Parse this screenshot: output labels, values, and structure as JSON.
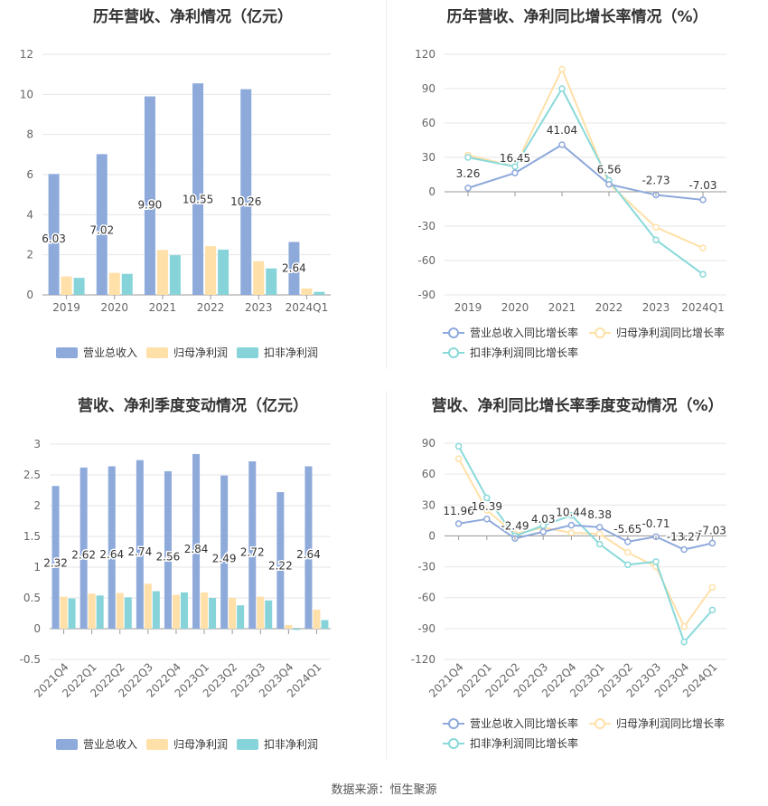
{
  "source": "数据来源：恒生聚源",
  "colors": {
    "revenue": "#8eaadb",
    "netprofit": "#ffe0a8",
    "deducted": "#86d4d9",
    "rev_growth": "#8ea9db",
    "np_growth": "#ffe0a8",
    "ded_growth": "#89d9da",
    "grid": "#e6e6e6",
    "axis_text": "#666666",
    "label_text": "#333333"
  },
  "chart_data": [
    {
      "type": "bar",
      "title": "历年营收、净利情况（亿元）",
      "categories": [
        "2019",
        "2020",
        "2021",
        "2022",
        "2023",
        "2024Q1"
      ],
      "ylim": [
        0,
        12
      ],
      "yticks": [
        "0",
        "2",
        "4",
        "6",
        "8",
        "10",
        "12"
      ],
      "series": [
        {
          "name": "营业总收入",
          "color": "#8eaadb",
          "values": [
            6.03,
            7.02,
            9.9,
            10.55,
            10.26,
            2.64
          ],
          "labels": [
            "6.03",
            "7.02",
            "9.90",
            "10.55",
            "10.26",
            "2.64"
          ]
        },
        {
          "name": "归母净利润",
          "color": "#ffe0a8",
          "values": [
            0.92,
            1.1,
            2.24,
            2.43,
            1.68,
            0.32
          ]
        },
        {
          "name": "扣非净利润",
          "color": "#86d4d9",
          "values": [
            0.85,
            1.05,
            1.98,
            2.26,
            1.32,
            0.15
          ]
        }
      ],
      "legend": "bottom"
    },
    {
      "type": "line",
      "title": "历年营收、净利同比增长率情况（%）",
      "categories": [
        "2019",
        "2020",
        "2021",
        "2022",
        "2023",
        "2024Q1"
      ],
      "ylim": [
        -90,
        120
      ],
      "yticks": [
        "-90",
        "-60",
        "-30",
        "0",
        "30",
        "60",
        "90",
        "120"
      ],
      "series": [
        {
          "name": "营业总收入同比增长率",
          "color": "#8ea9db",
          "values": [
            3.26,
            16.45,
            41.04,
            6.56,
            -2.73,
            -7.03
          ],
          "labels": [
            "3.26",
            "16.45",
            "41.04",
            "6.56",
            "-2.73",
            "-7.03"
          ]
        },
        {
          "name": "归母净利润同比增长率",
          "color": "#ffe0a8",
          "values": [
            32,
            22,
            107,
            7,
            -31,
            -49
          ]
        },
        {
          "name": "扣非净利润同比增长率",
          "color": "#89d9da",
          "values": [
            30,
            22,
            90,
            10,
            -42,
            -72
          ]
        }
      ],
      "legend": "bottom"
    },
    {
      "type": "bar",
      "title": "营收、净利季度变动情况（亿元）",
      "categories": [
        "2021Q4",
        "2022Q1",
        "2022Q2",
        "2022Q3",
        "2022Q4",
        "2023Q1",
        "2023Q2",
        "2023Q3",
        "2023Q4",
        "2024Q1"
      ],
      "ylim": [
        -0.5,
        3
      ],
      "yticks": [
        "-0.5",
        "0",
        "0.5",
        "1",
        "1.5",
        "2",
        "2.5",
        "3"
      ],
      "series": [
        {
          "name": "营业总收入",
          "color": "#8eaadb",
          "values": [
            2.32,
            2.62,
            2.64,
            2.74,
            2.56,
            2.84,
            2.49,
            2.72,
            2.22,
            2.64
          ],
          "labels": [
            "2.32",
            "2.62",
            "2.64",
            "2.74",
            "2.56",
            "2.84",
            "2.49",
            "2.72",
            "2.22",
            "2.64"
          ]
        },
        {
          "name": "归母净利润",
          "color": "#ffe0a8",
          "values": [
            0.52,
            0.57,
            0.58,
            0.73,
            0.55,
            0.59,
            0.5,
            0.52,
            0.06,
            0.31
          ]
        },
        {
          "name": "扣非净利润",
          "color": "#86d4d9",
          "values": [
            0.49,
            0.54,
            0.51,
            0.61,
            0.59,
            0.5,
            0.38,
            0.46,
            -0.02,
            0.14
          ]
        }
      ],
      "legend": "bottom"
    },
    {
      "type": "line",
      "title": "营收、净利同比增长率季度变动情况（%）",
      "categories": [
        "2021Q4",
        "2022Q1",
        "2022Q2",
        "2022Q3",
        "2022Q4",
        "2023Q1",
        "2023Q2",
        "2023Q3",
        "2023Q4",
        "2024Q1"
      ],
      "ylim": [
        -120,
        90
      ],
      "yticks": [
        "-120",
        "-90",
        "-60",
        "-30",
        "0",
        "30",
        "60",
        "90"
      ],
      "series": [
        {
          "name": "营业总收入同比增长率",
          "color": "#8ea9db",
          "values": [
            11.96,
            16.39,
            -2.49,
            4.03,
            10.44,
            8.38,
            -5.65,
            -0.71,
            -13.27,
            -7.03
          ],
          "labels": [
            "11.96",
            "16.39",
            "-2.49",
            "4.03",
            "10.44",
            "8.38",
            "-5.65",
            "-0.71",
            "-13.27",
            "-7.03"
          ]
        },
        {
          "name": "归母净利润同比增长率",
          "color": "#ffe0a8",
          "values": [
            75,
            25,
            2,
            8,
            3,
            2,
            -16,
            -30,
            -88,
            -50
          ]
        },
        {
          "name": "扣非净利润同比增长率",
          "color": "#89d9da",
          "values": [
            87,
            37,
            0,
            10,
            20,
            -8,
            -28,
            -25,
            -103,
            -72
          ]
        }
      ],
      "legend": "bottom"
    }
  ]
}
